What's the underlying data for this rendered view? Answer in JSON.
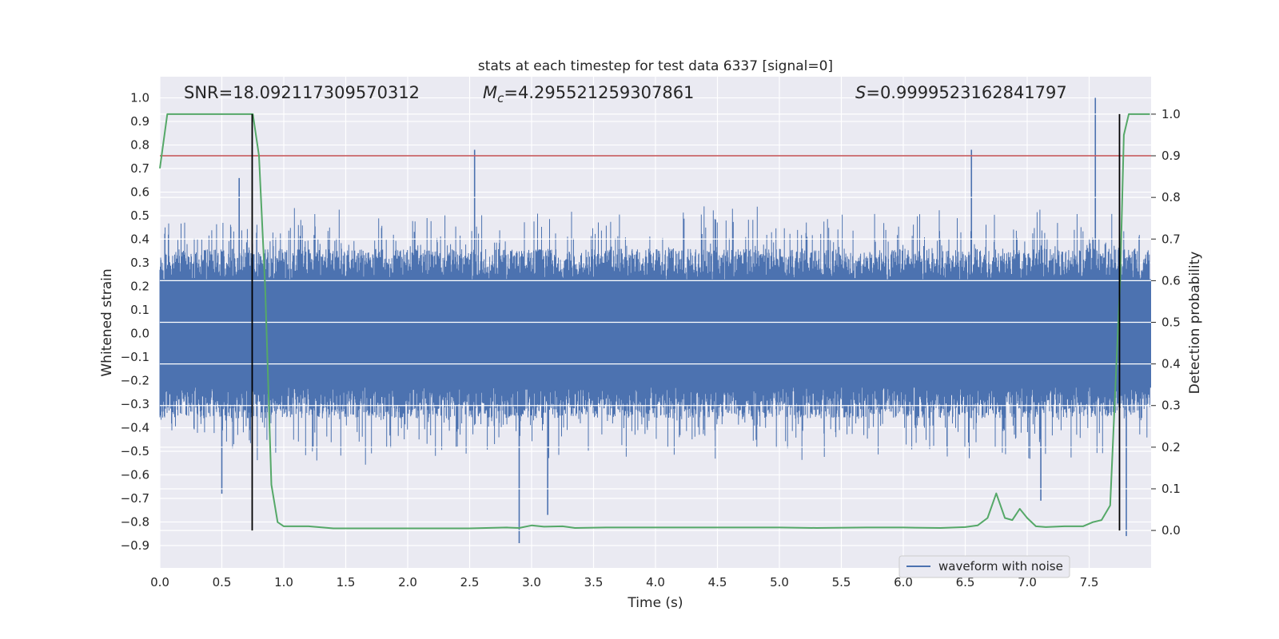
{
  "chart_data": {
    "type": "line",
    "title": "stats at each timestep for test data 6337 [signal=0]",
    "xlabel": "Time (s)",
    "ylabel_left": "Whitened strain",
    "ylabel_right": "Detection probability",
    "xlim": [
      0.0,
      8.0
    ],
    "ylim_left": [
      -0.995,
      1.09
    ],
    "ylim_right": [
      -0.09,
      1.09
    ],
    "x_ticks": [
      "0.0",
      "0.5",
      "1.0",
      "1.5",
      "2.0",
      "2.5",
      "3.0",
      "3.5",
      "4.0",
      "4.5",
      "5.0",
      "5.5",
      "6.0",
      "6.5",
      "7.0",
      "7.5"
    ],
    "y_left_ticks": [
      "−0.9",
      "−0.8",
      "−0.7",
      "−0.6",
      "−0.5",
      "−0.4",
      "−0.3",
      "−0.2",
      "−0.1",
      "0.0",
      "0.1",
      "0.2",
      "0.3",
      "0.4",
      "0.5",
      "0.6",
      "0.7",
      "0.8",
      "0.9",
      "1.0"
    ],
    "y_right_ticks": [
      "0.0",
      "0.1",
      "0.2",
      "0.3",
      "0.4",
      "0.5",
      "0.6",
      "0.7",
      "0.8",
      "0.9",
      "1.0"
    ],
    "grid": true,
    "annotations": {
      "snr": "SNR=18.092117309570312",
      "mc_symbol": "M",
      "mc_sub": "c",
      "mc_value": "=4.295521259307861",
      "s_symbol": "S",
      "s_value": "=0.9999523162841797"
    },
    "legend": {
      "position": "lower-right",
      "entries": [
        "waveform with noise"
      ]
    },
    "series": [
      {
        "name": "waveform with noise",
        "axis": "left",
        "color": "#4c72b0",
        "style": "dense noise band, core roughly -0.42 to 0.42",
        "notable_spikes": [
          {
            "x": 0.5,
            "y": -0.68
          },
          {
            "x": 0.64,
            "y": 0.66
          },
          {
            "x": 2.54,
            "y": 0.78
          },
          {
            "x": 2.9,
            "y": -0.89
          },
          {
            "x": 3.13,
            "y": -0.77
          },
          {
            "x": 6.55,
            "y": 0.78
          },
          {
            "x": 7.11,
            "y": -0.71
          },
          {
            "x": 7.55,
            "y": 1.0
          },
          {
            "x": 7.8,
            "y": -0.86
          }
        ]
      },
      {
        "name": "detection probability",
        "axis": "right",
        "color": "#55a868",
        "x": [
          0.0,
          0.06,
          0.1,
          0.2,
          0.4,
          0.6,
          0.7,
          0.75,
          0.8,
          0.85,
          0.9,
          0.95,
          1.0,
          1.1,
          1.2,
          1.4,
          1.6,
          2.0,
          2.5,
          2.8,
          2.9,
          3.0,
          3.1,
          3.25,
          3.35,
          3.6,
          3.8,
          4.2,
          4.6,
          5.0,
          5.3,
          5.7,
          6.0,
          6.3,
          6.5,
          6.6,
          6.68,
          6.75,
          6.82,
          6.88,
          6.94,
          7.0,
          7.07,
          7.15,
          7.3,
          7.38,
          7.45,
          7.53,
          7.6,
          7.67,
          7.72,
          7.75,
          7.78,
          7.82,
          7.9,
          7.99
        ],
        "y": [
          0.87,
          1.0,
          1.0,
          1.0,
          1.0,
          1.0,
          1.0,
          1.0,
          0.9,
          0.58,
          0.11,
          0.02,
          0.01,
          0.01,
          0.01,
          0.005,
          0.005,
          0.005,
          0.005,
          0.007,
          0.006,
          0.012,
          0.009,
          0.01,
          0.006,
          0.007,
          0.007,
          0.007,
          0.007,
          0.007,
          0.006,
          0.007,
          0.007,
          0.006,
          0.008,
          0.012,
          0.03,
          0.089,
          0.03,
          0.025,
          0.052,
          0.03,
          0.01,
          0.008,
          0.01,
          0.01,
          0.01,
          0.02,
          0.025,
          0.06,
          0.4,
          0.6,
          0.95,
          1.0,
          1.0,
          1.0
        ]
      }
    ],
    "threshold_line": {
      "axis": "right",
      "y": 0.9,
      "color": "#c44e52"
    },
    "vertical_lines": [
      {
        "x": 0.745,
        "y_from": 0.0,
        "y_to": 1.0,
        "axis": "right",
        "color": "#000000"
      },
      {
        "x": 7.745,
        "y_from": 0.0,
        "y_to": 1.0,
        "axis": "right",
        "color": "#000000"
      }
    ],
    "colors": {
      "background": "#eaeaf2",
      "grid": "#ffffff",
      "waveform": "#4c72b0",
      "probability": "#55a868",
      "threshold": "#c44e52",
      "markers": "#000000"
    }
  }
}
